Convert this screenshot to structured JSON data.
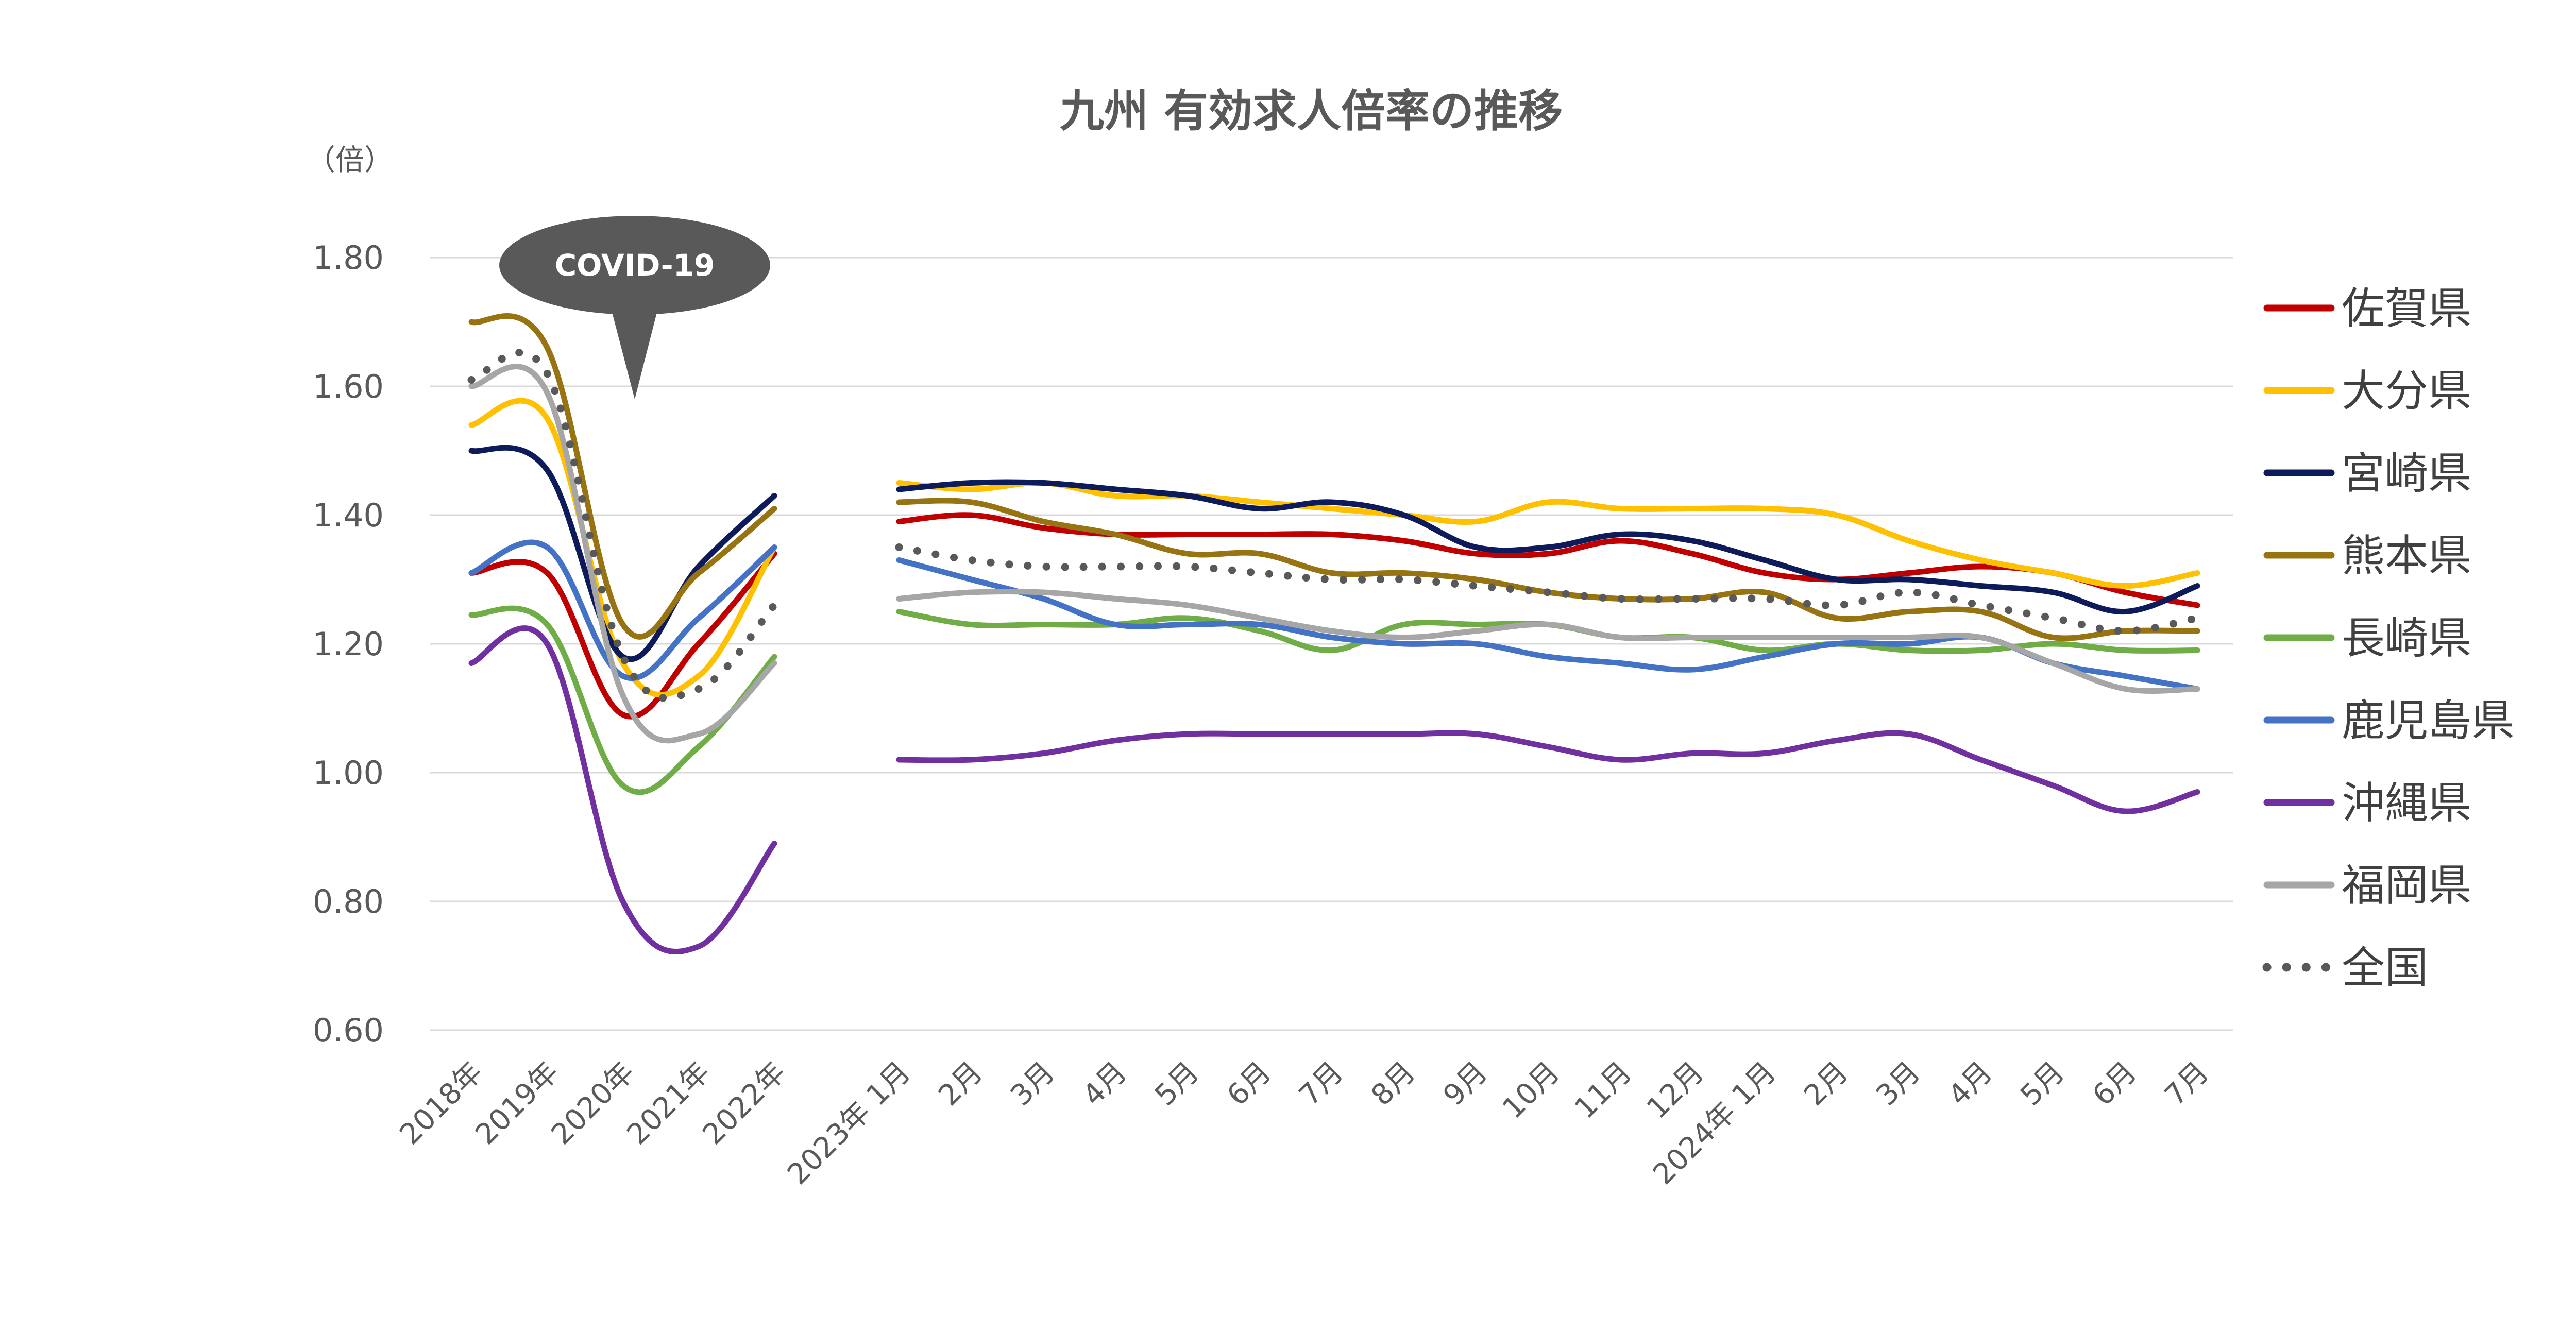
{
  "chart_data": {
    "type": "line",
    "title": "九州 有効求人倍率の推移",
    "y_unit": "（倍）",
    "ylim": [
      0.6,
      1.8
    ],
    "ytick_labels": [
      "1.80",
      "1.60",
      "1.40",
      "1.20",
      "1.00",
      "0.80",
      "0.60"
    ],
    "grid": true,
    "legend_position": "right",
    "annotation": "COVID-19",
    "groups": [
      {
        "name": "annual",
        "categories": [
          "2018年",
          "2019年",
          "2020年",
          "2021年",
          "2022年"
        ]
      },
      {
        "name": "monthly",
        "categories": [
          "2023年 1月",
          "2月",
          "3月",
          "4月",
          "5月",
          "6月",
          "7月",
          "8月",
          "9月",
          "10月",
          "11月",
          "12月",
          "2024年 1月",
          "2月",
          "3月",
          "4月",
          "5月",
          "6月",
          "7月"
        ]
      }
    ],
    "series": [
      {
        "name": "佐賀県",
        "color": "#C00000",
        "dashed": false,
        "annual": [
          1.31,
          1.31,
          1.09,
          1.2,
          1.34
        ],
        "monthly": [
          1.39,
          1.4,
          1.38,
          1.37,
          1.37,
          1.37,
          1.37,
          1.36,
          1.34,
          1.34,
          1.36,
          1.34,
          1.31,
          1.3,
          1.31,
          1.32,
          1.31,
          1.28,
          1.26
        ]
      },
      {
        "name": "大分県",
        "color": "#FFC000",
        "dashed": false,
        "annual": [
          1.54,
          1.55,
          1.17,
          1.15,
          1.35
        ],
        "monthly": [
          1.45,
          1.44,
          1.45,
          1.43,
          1.43,
          1.42,
          1.41,
          1.4,
          1.39,
          1.42,
          1.41,
          1.41,
          1.41,
          1.4,
          1.36,
          1.33,
          1.31,
          1.29,
          1.31
        ]
      },
      {
        "name": "宮崎県",
        "color": "#0D1B5A",
        "dashed": false,
        "annual": [
          1.5,
          1.47,
          1.18,
          1.32,
          1.43
        ],
        "monthly": [
          1.44,
          1.45,
          1.45,
          1.44,
          1.43,
          1.41,
          1.42,
          1.4,
          1.35,
          1.35,
          1.37,
          1.36,
          1.33,
          1.3,
          1.3,
          1.29,
          1.28,
          1.25,
          1.29
        ]
      },
      {
        "name": "熊本県",
        "color": "#977311",
        "dashed": false,
        "annual": [
          1.7,
          1.66,
          1.23,
          1.31,
          1.41
        ],
        "monthly": [
          1.42,
          1.42,
          1.39,
          1.37,
          1.34,
          1.34,
          1.31,
          1.31,
          1.3,
          1.28,
          1.27,
          1.27,
          1.28,
          1.24,
          1.25,
          1.25,
          1.21,
          1.22,
          1.22
        ]
      },
      {
        "name": "長崎県",
        "color": "#70AD47",
        "dashed": false,
        "annual": [
          1.245,
          1.23,
          0.98,
          1.04,
          1.18
        ],
        "monthly": [
          1.25,
          1.23,
          1.23,
          1.23,
          1.24,
          1.22,
          1.19,
          1.23,
          1.23,
          1.23,
          1.21,
          1.21,
          1.19,
          1.2,
          1.19,
          1.19,
          1.2,
          1.19,
          1.19
        ]
      },
      {
        "name": "鹿児島県",
        "color": "#4472C4",
        "dashed": false,
        "annual": [
          1.31,
          1.35,
          1.15,
          1.24,
          1.35
        ],
        "monthly": [
          1.33,
          1.3,
          1.27,
          1.23,
          1.23,
          1.23,
          1.21,
          1.2,
          1.2,
          1.18,
          1.17,
          1.16,
          1.18,
          1.2,
          1.2,
          1.21,
          1.17,
          1.15,
          1.13
        ]
      },
      {
        "name": "沖縄県",
        "color": "#7030A0",
        "dashed": false,
        "annual": [
          1.17,
          1.2,
          0.8,
          0.73,
          0.89
        ],
        "monthly": [
          1.02,
          1.02,
          1.03,
          1.05,
          1.06,
          1.06,
          1.06,
          1.06,
          1.06,
          1.04,
          1.02,
          1.03,
          1.03,
          1.05,
          1.06,
          1.02,
          0.98,
          0.94,
          0.97
        ]
      },
      {
        "name": "福岡県",
        "color": "#A6A6A6",
        "dashed": false,
        "annual": [
          1.6,
          1.59,
          1.12,
          1.06,
          1.17
        ],
        "monthly": [
          1.27,
          1.28,
          1.28,
          1.27,
          1.26,
          1.24,
          1.22,
          1.21,
          1.22,
          1.23,
          1.21,
          1.21,
          1.21,
          1.21,
          1.21,
          1.21,
          1.17,
          1.13,
          1.13
        ]
      },
      {
        "name": "全国",
        "color": "#595959",
        "dashed": true,
        "annual": [
          1.61,
          1.62,
          1.18,
          1.13,
          1.26
        ],
        "monthly": [
          1.35,
          1.33,
          1.32,
          1.32,
          1.32,
          1.31,
          1.3,
          1.3,
          1.29,
          1.28,
          1.27,
          1.27,
          1.27,
          1.26,
          1.28,
          1.26,
          1.24,
          1.22,
          1.24
        ]
      }
    ]
  }
}
